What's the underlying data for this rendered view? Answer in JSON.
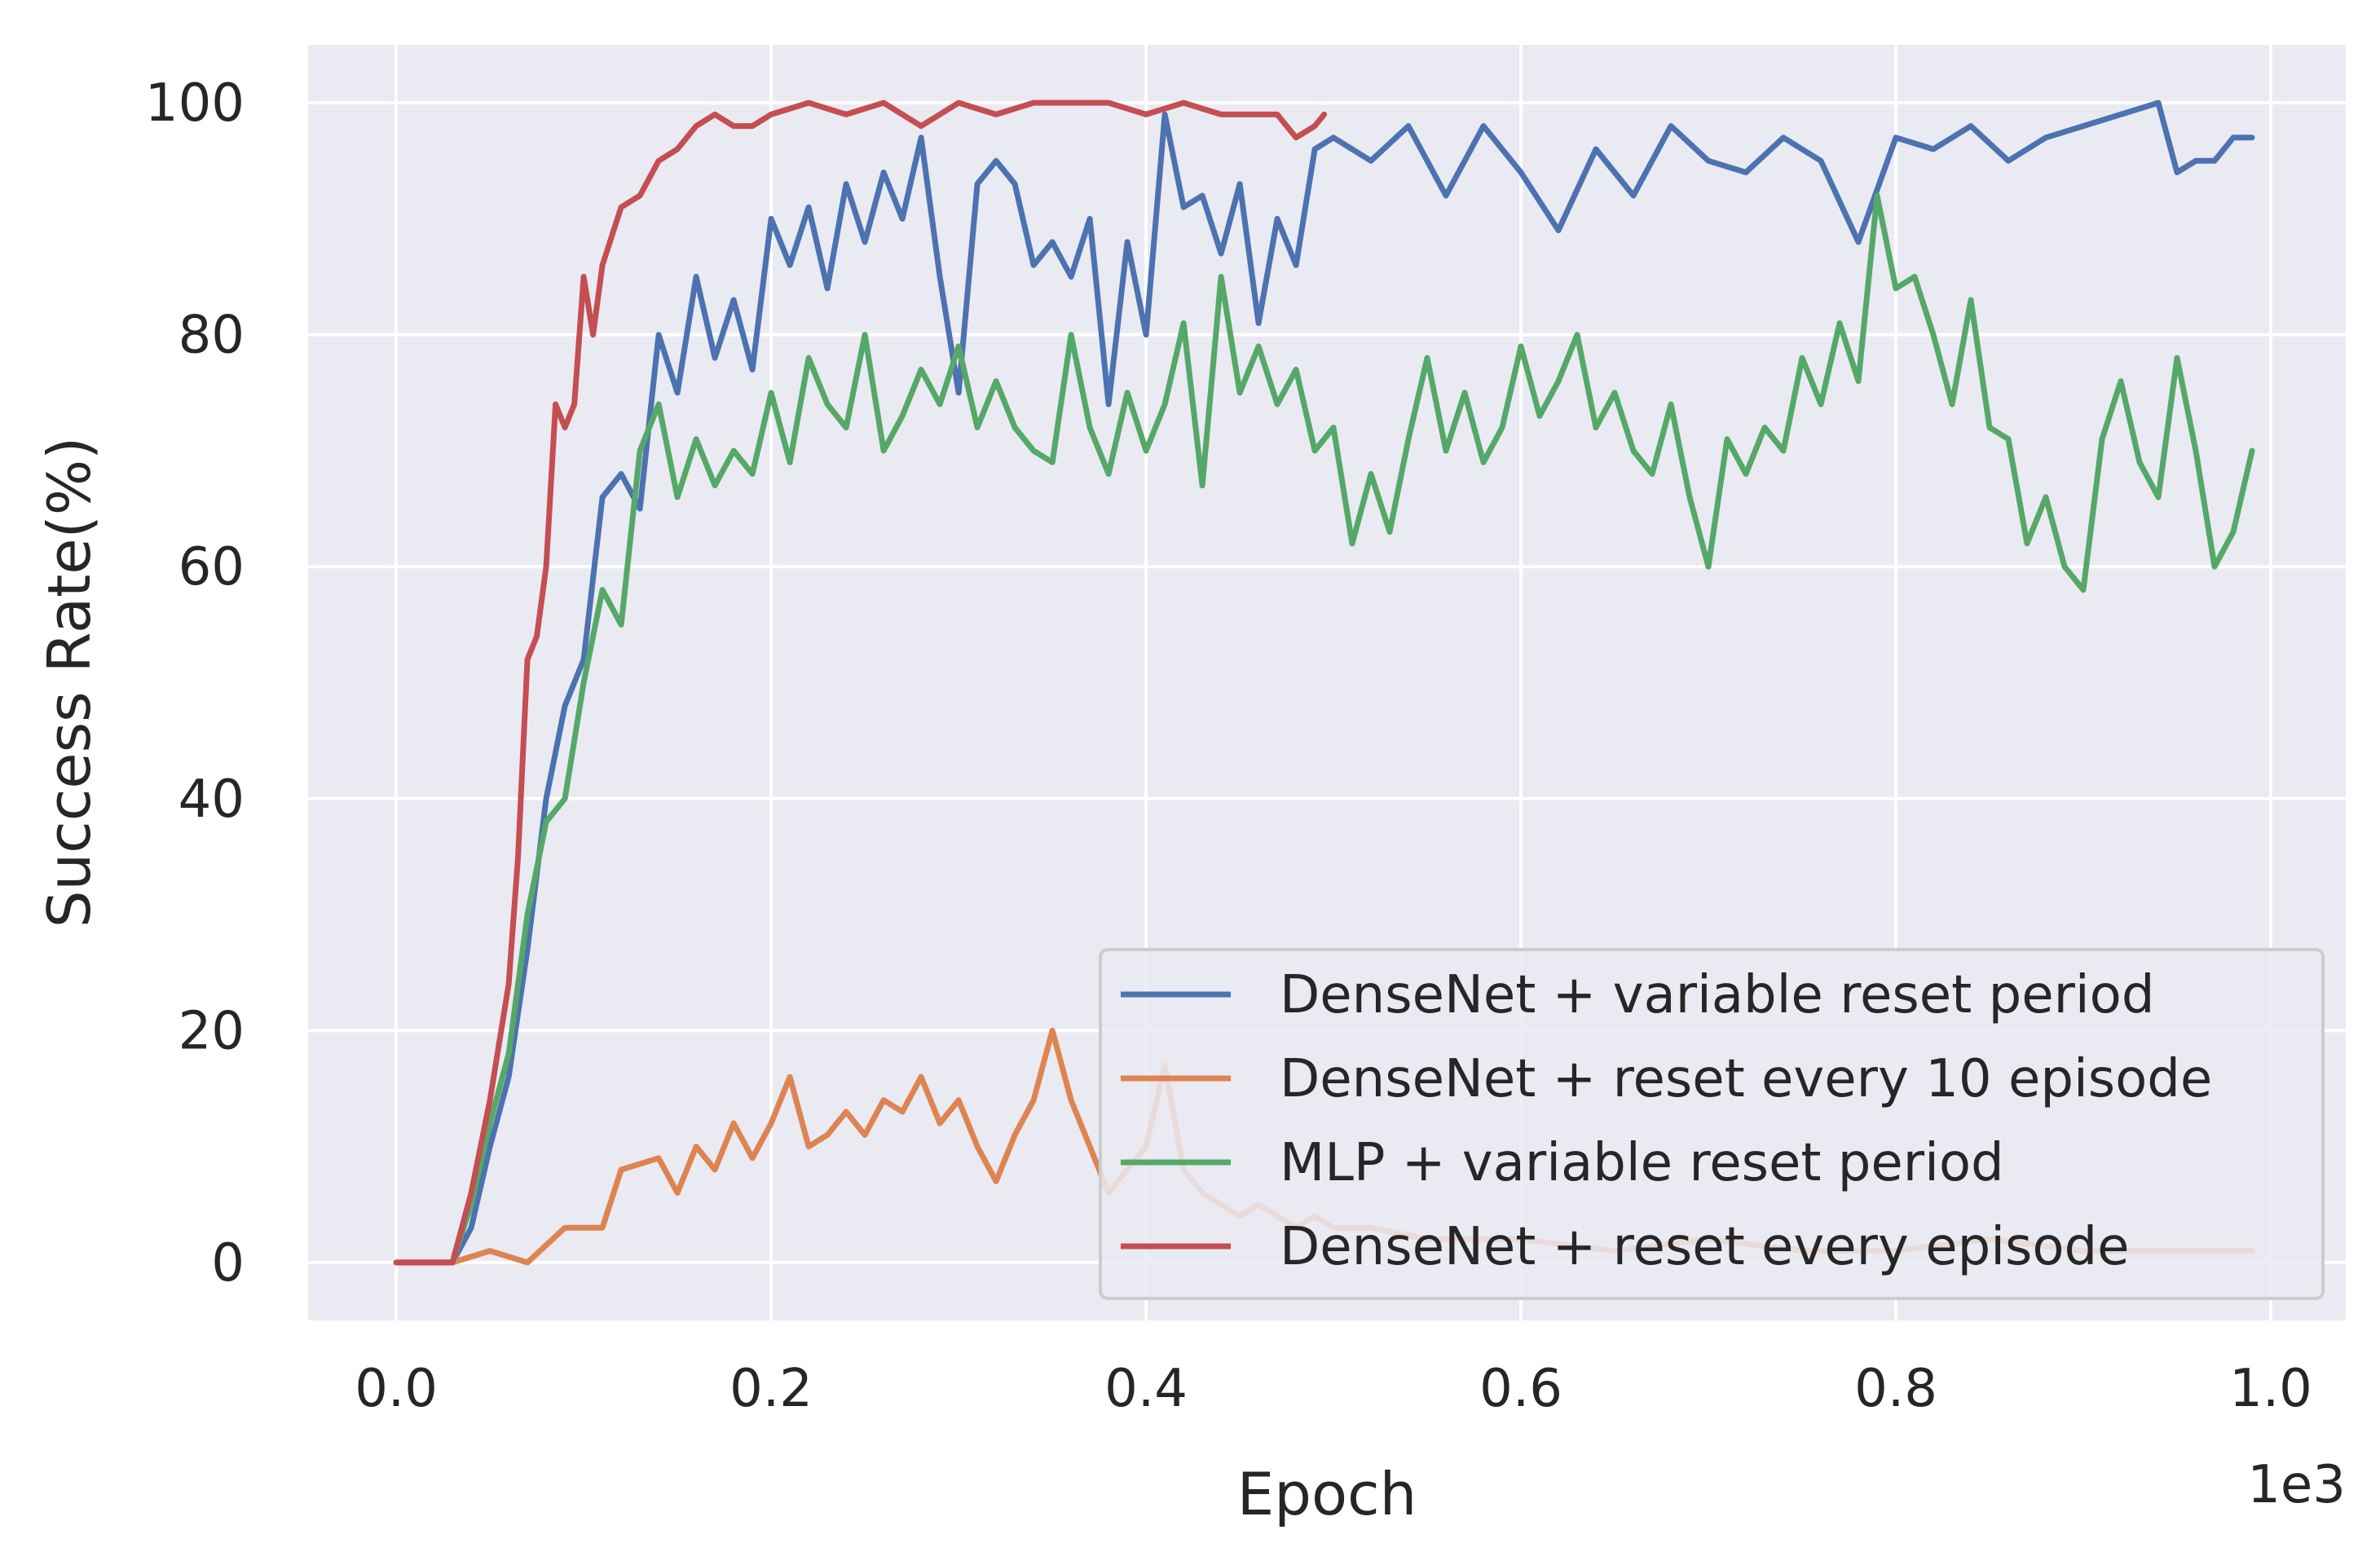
{
  "chart_data": {
    "type": "line",
    "title": "",
    "xlabel": "Epoch",
    "ylabel": "Success Rate(%)",
    "x_offset_label": "1e3",
    "xlim": [
      -0.047,
      1.04
    ],
    "ylim": [
      -5,
      105
    ],
    "x_ticks": [
      0.0,
      0.2,
      0.4,
      0.6,
      0.8,
      1.0
    ],
    "x_tick_labels": [
      "0.0",
      "0.2",
      "0.4",
      "0.6",
      "0.8",
      "1.0"
    ],
    "y_ticks": [
      0,
      20,
      40,
      60,
      80,
      100
    ],
    "y_tick_labels": [
      "0",
      "20",
      "40",
      "60",
      "80",
      "100"
    ],
    "grid": true,
    "legend_position": "lower-right",
    "series": [
      {
        "name": "DenseNet + variable reset period",
        "color": "#4c72b0",
        "points": [
          [
            0.0,
            0
          ],
          [
            0.03,
            0
          ],
          [
            0.04,
            3
          ],
          [
            0.05,
            10
          ],
          [
            0.06,
            16
          ],
          [
            0.07,
            27
          ],
          [
            0.08,
            40
          ],
          [
            0.09,
            48
          ],
          [
            0.1,
            52
          ],
          [
            0.11,
            66
          ],
          [
            0.12,
            68
          ],
          [
            0.13,
            65
          ],
          [
            0.14,
            80
          ],
          [
            0.15,
            75
          ],
          [
            0.16,
            85
          ],
          [
            0.17,
            78
          ],
          [
            0.18,
            83
          ],
          [
            0.19,
            77
          ],
          [
            0.2,
            90
          ],
          [
            0.21,
            86
          ],
          [
            0.22,
            91
          ],
          [
            0.23,
            84
          ],
          [
            0.24,
            93
          ],
          [
            0.25,
            88
          ],
          [
            0.26,
            94
          ],
          [
            0.27,
            90
          ],
          [
            0.28,
            97
          ],
          [
            0.29,
            85
          ],
          [
            0.3,
            75
          ],
          [
            0.31,
            93
          ],
          [
            0.32,
            95
          ],
          [
            0.33,
            93
          ],
          [
            0.34,
            86
          ],
          [
            0.35,
            88
          ],
          [
            0.36,
            85
          ],
          [
            0.37,
            90
          ],
          [
            0.38,
            74
          ],
          [
            0.39,
            88
          ],
          [
            0.4,
            80
          ],
          [
            0.41,
            99
          ],
          [
            0.42,
            91
          ],
          [
            0.43,
            92
          ],
          [
            0.44,
            87
          ],
          [
            0.45,
            93
          ],
          [
            0.46,
            81
          ],
          [
            0.47,
            90
          ],
          [
            0.48,
            86
          ],
          [
            0.49,
            96
          ],
          [
            0.5,
            97
          ],
          [
            0.52,
            95
          ],
          [
            0.54,
            98
          ],
          [
            0.56,
            92
          ],
          [
            0.58,
            98
          ],
          [
            0.6,
            94
          ],
          [
            0.62,
            89
          ],
          [
            0.64,
            96
          ],
          [
            0.66,
            92
          ],
          [
            0.68,
            98
          ],
          [
            0.7,
            95
          ],
          [
            0.72,
            94
          ],
          [
            0.74,
            97
          ],
          [
            0.76,
            95
          ],
          [
            0.78,
            88
          ],
          [
            0.8,
            97
          ],
          [
            0.82,
            96
          ],
          [
            0.84,
            98
          ],
          [
            0.86,
            95
          ],
          [
            0.88,
            97
          ],
          [
            0.9,
            98
          ],
          [
            0.92,
            99
          ],
          [
            0.94,
            100
          ],
          [
            0.95,
            94
          ],
          [
            0.96,
            95
          ],
          [
            0.97,
            95
          ],
          [
            0.98,
            97
          ],
          [
            0.99,
            97
          ]
        ]
      },
      {
        "name": "DenseNet + reset every 10 episode",
        "color": "#dd8452",
        "points": [
          [
            0.0,
            0
          ],
          [
            0.03,
            0
          ],
          [
            0.05,
            1
          ],
          [
            0.07,
            0
          ],
          [
            0.09,
            3
          ],
          [
            0.11,
            3
          ],
          [
            0.12,
            8
          ],
          [
            0.14,
            9
          ],
          [
            0.15,
            6
          ],
          [
            0.16,
            10
          ],
          [
            0.17,
            8
          ],
          [
            0.18,
            12
          ],
          [
            0.19,
            9
          ],
          [
            0.2,
            12
          ],
          [
            0.21,
            16
          ],
          [
            0.22,
            10
          ],
          [
            0.23,
            11
          ],
          [
            0.24,
            13
          ],
          [
            0.25,
            11
          ],
          [
            0.26,
            14
          ],
          [
            0.27,
            13
          ],
          [
            0.28,
            16
          ],
          [
            0.29,
            12
          ],
          [
            0.3,
            14
          ],
          [
            0.31,
            10
          ],
          [
            0.32,
            7
          ],
          [
            0.33,
            11
          ],
          [
            0.34,
            14
          ],
          [
            0.35,
            20
          ],
          [
            0.36,
            14
          ],
          [
            0.37,
            10
          ],
          [
            0.38,
            6
          ],
          [
            0.39,
            8
          ],
          [
            0.4,
            10
          ],
          [
            0.41,
            17
          ],
          [
            0.42,
            8
          ],
          [
            0.43,
            6
          ],
          [
            0.44,
            5
          ],
          [
            0.45,
            4
          ],
          [
            0.46,
            5
          ],
          [
            0.47,
            4
          ],
          [
            0.48,
            3
          ],
          [
            0.49,
            4
          ],
          [
            0.5,
            3
          ],
          [
            0.52,
            3
          ],
          [
            0.55,
            2
          ],
          [
            0.6,
            2
          ],
          [
            0.65,
            1
          ],
          [
            0.7,
            2
          ],
          [
            0.75,
            1
          ],
          [
            0.8,
            1
          ],
          [
            0.85,
            2
          ],
          [
            0.9,
            1
          ],
          [
            0.95,
            1
          ],
          [
            0.99,
            1
          ]
        ]
      },
      {
        "name": "MLP + variable reset period",
        "color": "#55a868",
        "points": [
          [
            0.0,
            0
          ],
          [
            0.03,
            0
          ],
          [
            0.04,
            5
          ],
          [
            0.05,
            12
          ],
          [
            0.06,
            18
          ],
          [
            0.07,
            30
          ],
          [
            0.08,
            38
          ],
          [
            0.09,
            40
          ],
          [
            0.1,
            50
          ],
          [
            0.11,
            58
          ],
          [
            0.12,
            55
          ],
          [
            0.13,
            70
          ],
          [
            0.14,
            74
          ],
          [
            0.15,
            66
          ],
          [
            0.16,
            71
          ],
          [
            0.17,
            67
          ],
          [
            0.18,
            70
          ],
          [
            0.19,
            68
          ],
          [
            0.2,
            75
          ],
          [
            0.21,
            69
          ],
          [
            0.22,
            78
          ],
          [
            0.23,
            74
          ],
          [
            0.24,
            72
          ],
          [
            0.25,
            80
          ],
          [
            0.26,
            70
          ],
          [
            0.27,
            73
          ],
          [
            0.28,
            77
          ],
          [
            0.29,
            74
          ],
          [
            0.3,
            79
          ],
          [
            0.31,
            72
          ],
          [
            0.32,
            76
          ],
          [
            0.33,
            72
          ],
          [
            0.34,
            70
          ],
          [
            0.35,
            69
          ],
          [
            0.36,
            80
          ],
          [
            0.37,
            72
          ],
          [
            0.38,
            68
          ],
          [
            0.39,
            75
          ],
          [
            0.4,
            70
          ],
          [
            0.41,
            74
          ],
          [
            0.42,
            81
          ],
          [
            0.43,
            67
          ],
          [
            0.44,
            85
          ],
          [
            0.45,
            75
          ],
          [
            0.46,
            79
          ],
          [
            0.47,
            74
          ],
          [
            0.48,
            77
          ],
          [
            0.49,
            70
          ],
          [
            0.5,
            72
          ],
          [
            0.51,
            62
          ],
          [
            0.52,
            68
          ],
          [
            0.53,
            63
          ],
          [
            0.54,
            71
          ],
          [
            0.55,
            78
          ],
          [
            0.56,
            70
          ],
          [
            0.57,
            75
          ],
          [
            0.58,
            69
          ],
          [
            0.59,
            72
          ],
          [
            0.6,
            79
          ],
          [
            0.61,
            73
          ],
          [
            0.62,
            76
          ],
          [
            0.63,
            80
          ],
          [
            0.64,
            72
          ],
          [
            0.65,
            75
          ],
          [
            0.66,
            70
          ],
          [
            0.67,
            68
          ],
          [
            0.68,
            74
          ],
          [
            0.69,
            66
          ],
          [
            0.7,
            60
          ],
          [
            0.71,
            71
          ],
          [
            0.72,
            68
          ],
          [
            0.73,
            72
          ],
          [
            0.74,
            70
          ],
          [
            0.75,
            78
          ],
          [
            0.76,
            74
          ],
          [
            0.77,
            81
          ],
          [
            0.78,
            76
          ],
          [
            0.79,
            92
          ],
          [
            0.8,
            84
          ],
          [
            0.81,
            85
          ],
          [
            0.82,
            80
          ],
          [
            0.83,
            74
          ],
          [
            0.84,
            83
          ],
          [
            0.85,
            72
          ],
          [
            0.86,
            71
          ],
          [
            0.87,
            62
          ],
          [
            0.88,
            66
          ],
          [
            0.89,
            60
          ],
          [
            0.9,
            58
          ],
          [
            0.91,
            71
          ],
          [
            0.92,
            76
          ],
          [
            0.93,
            69
          ],
          [
            0.94,
            66
          ],
          [
            0.95,
            78
          ],
          [
            0.96,
            70
          ],
          [
            0.97,
            60
          ],
          [
            0.98,
            63
          ],
          [
            0.99,
            70
          ]
        ]
      },
      {
        "name": "DenseNet + reset every episode",
        "color": "#c44e52",
        "points": [
          [
            0.0,
            0
          ],
          [
            0.03,
            0
          ],
          [
            0.04,
            6
          ],
          [
            0.05,
            14
          ],
          [
            0.06,
            24
          ],
          [
            0.065,
            35
          ],
          [
            0.07,
            52
          ],
          [
            0.075,
            54
          ],
          [
            0.08,
            60
          ],
          [
            0.085,
            74
          ],
          [
            0.09,
            72
          ],
          [
            0.095,
            74
          ],
          [
            0.1,
            85
          ],
          [
            0.105,
            80
          ],
          [
            0.11,
            86
          ],
          [
            0.12,
            91
          ],
          [
            0.13,
            92
          ],
          [
            0.14,
            95
          ],
          [
            0.15,
            96
          ],
          [
            0.16,
            98
          ],
          [
            0.17,
            99
          ],
          [
            0.18,
            98
          ],
          [
            0.19,
            98
          ],
          [
            0.2,
            99
          ],
          [
            0.22,
            100
          ],
          [
            0.24,
            99
          ],
          [
            0.26,
            100
          ],
          [
            0.28,
            98
          ],
          [
            0.3,
            100
          ],
          [
            0.32,
            99
          ],
          [
            0.34,
            100
          ],
          [
            0.36,
            100
          ],
          [
            0.38,
            100
          ],
          [
            0.4,
            99
          ],
          [
            0.42,
            100
          ],
          [
            0.44,
            99
          ],
          [
            0.46,
            99
          ],
          [
            0.47,
            99
          ],
          [
            0.48,
            97
          ],
          [
            0.49,
            98
          ],
          [
            0.495,
            99
          ]
        ]
      }
    ]
  }
}
